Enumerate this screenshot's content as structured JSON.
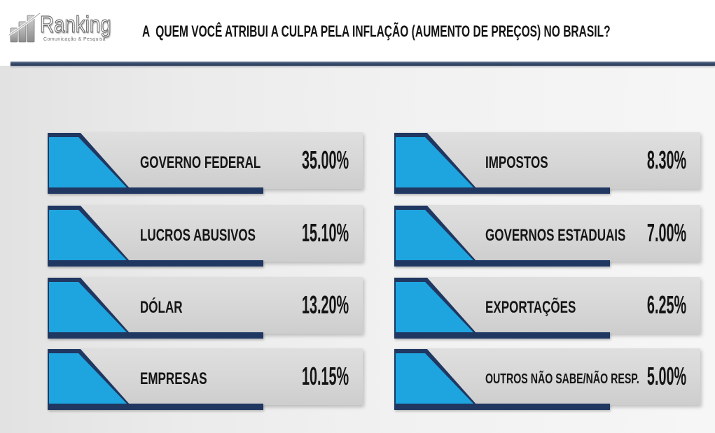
{
  "logo": {
    "name": "Ranking",
    "tagline": "Comunicação & Pesquisa",
    "icon": "ranking-logo-icon"
  },
  "theme": {
    "accent": "#1ea5df",
    "navy": "#1f3761",
    "card": "#d6d6d6",
    "divider": "#34496a",
    "text": "#151515"
  },
  "chart_data": {
    "type": "table",
    "title": "A  QUEM VOCÊ ATRIBUI A CULPA PELA INFLAÇÃO (AUMENTO DE PREÇOS) NO BRASIL?",
    "categories": [
      "GOVERNO FEDERAL",
      "LUCROS ABUSIVOS",
      "DÓLAR",
      "EMPRESAS",
      "IMPOSTOS",
      "GOVERNOS ESTADUAIS",
      "EXPORTAÇÕES",
      "OUTROS NÃO SABE/NÃO RESP."
    ],
    "values": [
      35.0,
      15.1,
      13.2,
      10.15,
      8.3,
      7.0,
      6.25,
      5.0
    ],
    "unit": "%"
  }
}
